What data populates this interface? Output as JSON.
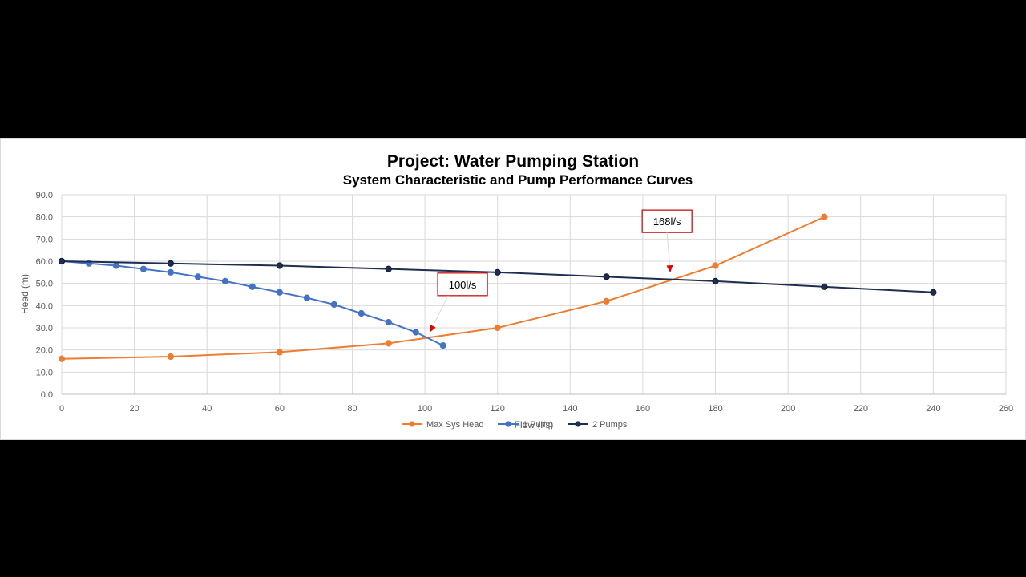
{
  "chart_data": {
    "type": "line",
    "title": "Project: Water Pumping Station",
    "subtitle": "System Characteristic and Pump Performance Curves",
    "xlabel": "Flow (l/s)",
    "ylabel": "Head (m)",
    "xlim": [
      0,
      260
    ],
    "ylim": [
      0,
      90
    ],
    "xticks": [
      "0",
      "20",
      "40",
      "60",
      "80",
      "100",
      "120",
      "140",
      "160",
      "180",
      "200",
      "220",
      "240",
      "260"
    ],
    "yticks": [
      "0.0",
      "10.0",
      "20.0",
      "30.0",
      "40.0",
      "50.0",
      "60.0",
      "70.0",
      "80.0",
      "90.0"
    ],
    "grid": true,
    "legend_position": "bottom",
    "series": [
      {
        "name": "Max Sys Head",
        "color": "#ED7D31",
        "x": [
          0,
          30,
          60,
          90,
          120,
          150,
          180,
          210
        ],
        "y": [
          16,
          17,
          19,
          23,
          30,
          42,
          58,
          80
        ]
      },
      {
        "name": "1 Pump",
        "color": "#4472C4",
        "x": [
          0,
          7.5,
          15,
          22.5,
          30,
          37.5,
          45,
          52.5,
          60,
          67.5,
          75,
          82.5,
          90,
          97.5,
          105
        ],
        "y": [
          60,
          59,
          58,
          56.5,
          55,
          53,
          51,
          48.5,
          46,
          43.5,
          40.5,
          36.5,
          32.5,
          28,
          22
        ]
      },
      {
        "name": "2 Pumps",
        "color": "#1F2D4F",
        "x": [
          0,
          30,
          60,
          90,
          120,
          150,
          180,
          210,
          240
        ],
        "y": [
          60,
          59,
          58,
          56.5,
          55,
          53,
          51,
          48.5,
          46
        ]
      }
    ],
    "annotations": [
      {
        "text": "100l/s",
        "x": 100,
        "y": 25,
        "color": "#C00000"
      },
      {
        "text": "168l/s",
        "x": 168,
        "y": 52,
        "color": "#C00000"
      }
    ]
  }
}
